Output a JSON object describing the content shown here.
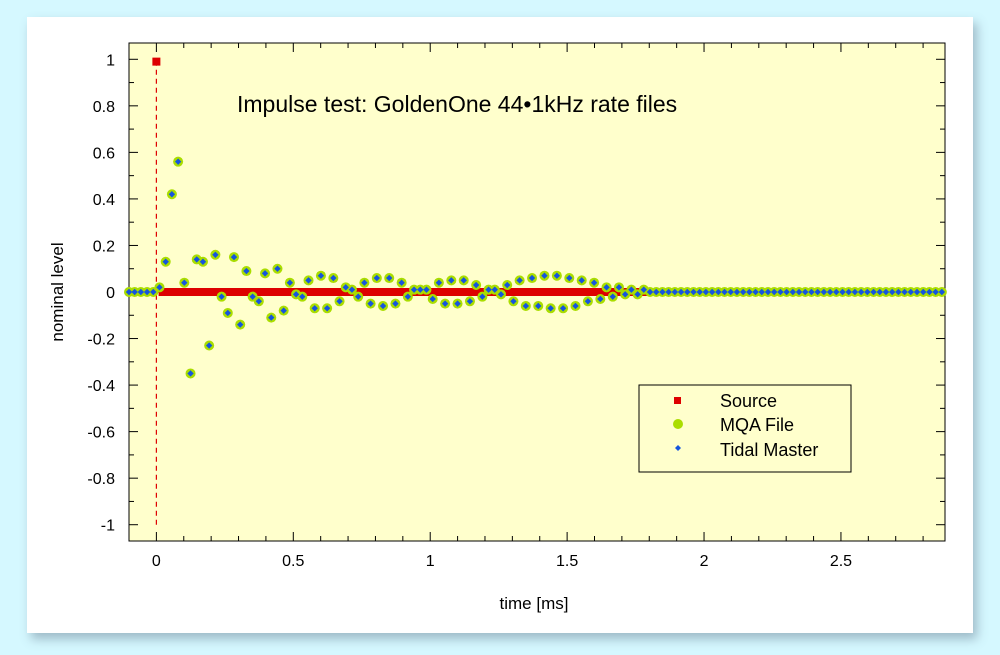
{
  "chart_data": {
    "type": "scatter",
    "title": "Impulse test: GoldenOne 44•1kHz rate files",
    "xlabel": "time [ms]",
    "ylabel": "nominal level",
    "xlim": [
      -0.1,
      2.88
    ],
    "ylim": [
      -1.07,
      1.07
    ],
    "x_ticks": [
      0,
      0.5,
      1,
      1.5,
      2,
      2.5
    ],
    "x_tick_labels": [
      "0",
      "0.5",
      "1",
      "1.5",
      "2",
      "2.5"
    ],
    "y_ticks": [
      1,
      0.8,
      0.6,
      0.4,
      0.2,
      0,
      -0.2,
      -0.4,
      -0.6,
      -0.8,
      -1
    ],
    "y_tick_labels": [
      "1",
      "0.8",
      "0.6",
      "0.4",
      "0.2",
      "0",
      "-0.2",
      "-0.4",
      "-0.6",
      "-0.8",
      "-1"
    ],
    "plot_background": "#ffffcc",
    "grid": false,
    "legend_position": "bottom-right",
    "series": [
      {
        "name": "Source",
        "marker": "square",
        "color": "#dd0000",
        "x": [
          0,
          0.0227,
          0.0454,
          0.068,
          0.0907,
          0.1134,
          0.1361,
          0.1587,
          0.1814,
          0.2041,
          0.2268,
          0.2494,
          0.2721,
          0.2948,
          0.3175,
          0.3401,
          0.3628,
          0.3855,
          0.4082,
          0.4308,
          0.4535,
          0.4762,
          0.4989,
          0.5215,
          0.5442,
          0.5669,
          0.5896,
          0.6122,
          0.6349,
          0.6576,
          0.6803,
          0.7029,
          0.7256,
          0.7483,
          0.771,
          0.7937,
          0.8163,
          0.839,
          0.8617,
          0.8844,
          0.907,
          0.9297,
          0.9524,
          0.9751,
          0.9977,
          1.0204,
          1.0431,
          1.0658,
          1.0884,
          1.1111,
          1.1338,
          1.1565,
          1.1791,
          1.2018,
          1.2245,
          1.2472,
          1.2698,
          1.2925,
          1.3152,
          1.3379,
          1.3605,
          1.3832,
          1.4059,
          1.4286,
          1.4512,
          1.4739,
          1.4966,
          1.5193,
          1.542,
          1.5646,
          1.5873,
          1.61,
          1.6327,
          1.6553,
          1.678,
          1.7007,
          1.7234,
          1.746,
          1.7687,
          1.7914
        ],
        "y": [
          0.99,
          0,
          0,
          0,
          0,
          0,
          0,
          0,
          0,
          0,
          0,
          0,
          0,
          0,
          0,
          0,
          0,
          0,
          0,
          0,
          0,
          0,
          0,
          0,
          0,
          0,
          0,
          0,
          0,
          0,
          0,
          0,
          0,
          0,
          0,
          0,
          0,
          0,
          0,
          0,
          0,
          0,
          0,
          0,
          0,
          0,
          0,
          0,
          0,
          0,
          0,
          0,
          0,
          0,
          0,
          0,
          0,
          0,
          0,
          0,
          0,
          0,
          0,
          0,
          0,
          0,
          0,
          0,
          0,
          0,
          0,
          0,
          0,
          0,
          0,
          0,
          0,
          0,
          0,
          0
        ]
      },
      {
        "name": "MQA File",
        "marker": "circle",
        "color": "#aadd00",
        "x": [
          -0.1,
          -0.0794,
          -0.0567,
          -0.034,
          -0.0113,
          0.0113,
          0.034,
          0.0567,
          0.0794,
          0.102,
          0.1247,
          0.1474,
          0.1701,
          0.1927,
          0.2154,
          0.2381,
          0.2608,
          0.2834,
          0.3061,
          0.3288,
          0.3515,
          0.3741,
          0.3968,
          0.4195,
          0.4422,
          0.4649,
          0.4875,
          0.5102,
          0.5329,
          0.5556,
          0.5782,
          0.6009,
          0.6236,
          0.6463,
          0.6689,
          0.6916,
          0.7143,
          0.737,
          0.7596,
          0.7823,
          0.805,
          0.8277,
          0.8503,
          0.873,
          0.8957,
          0.9184,
          0.941,
          0.9637,
          0.9864,
          1.0091,
          1.0317,
          1.0544,
          1.0771,
          1.0998,
          1.1224,
          1.1451,
          1.1678,
          1.1905,
          1.2132,
          1.2358,
          1.2585,
          1.2812,
          1.3039,
          1.3265,
          1.3492,
          1.3719,
          1.3946,
          1.4172,
          1.4399,
          1.4626,
          1.4853,
          1.5079,
          1.5306,
          1.5533,
          1.576,
          1.5986,
          1.6213,
          1.644,
          1.6667,
          1.6893,
          1.712,
          1.7347,
          1.7574,
          1.78,
          1.8027,
          1.8254,
          1.8481,
          1.8707,
          1.8934,
          1.9161,
          1.9388,
          1.9615,
          1.9841,
          2.0068,
          2.0295,
          2.0522,
          2.0748,
          2.0975,
          2.1202,
          2.1429,
          2.1655,
          2.1882,
          2.2109,
          2.2336,
          2.2562,
          2.2789,
          2.3016,
          2.3243,
          2.3469,
          2.3696,
          2.3923,
          2.415,
          2.4376,
          2.4603,
          2.483,
          2.5057,
          2.5283,
          2.551,
          2.5737,
          2.5964,
          2.619,
          2.6417,
          2.6644,
          2.6871,
          2.7098,
          2.7324,
          2.7551,
          2.7778,
          2.8005,
          2.8231,
          2.8458,
          2.8685
        ],
        "y": [
          0,
          0,
          0,
          0,
          0,
          0.02,
          0.13,
          0.42,
          0.56,
          0.04,
          -0.35,
          0.14,
          0.13,
          -0.23,
          0.16,
          -0.02,
          -0.09,
          0.15,
          -0.14,
          0.09,
          -0.02,
          -0.04,
          0.08,
          -0.11,
          0.1,
          -0.08,
          0.04,
          -0.01,
          -0.02,
          0.05,
          -0.07,
          0.07,
          -0.07,
          0.06,
          -0.04,
          0.02,
          0.01,
          -0.02,
          0.04,
          -0.05,
          0.06,
          -0.06,
          0.06,
          -0.05,
          0.04,
          -0.02,
          0.01,
          0.01,
          0.01,
          -0.03,
          0.04,
          -0.05,
          0.05,
          -0.05,
          0.05,
          -0.04,
          0.03,
          -0.02,
          0.01,
          0.01,
          -0.01,
          0.03,
          -0.04,
          0.05,
          -0.06,
          0.06,
          -0.06,
          0.07,
          -0.07,
          0.07,
          -0.07,
          0.06,
          -0.06,
          0.05,
          -0.04,
          0.04,
          -0.03,
          0.02,
          -0.02,
          0.02,
          -0.01,
          0.01,
          -0.01,
          0.01,
          0,
          0,
          0,
          0,
          0,
          0,
          0,
          0,
          0,
          0,
          0,
          0,
          0,
          0,
          0,
          0,
          0,
          0,
          0,
          0,
          0,
          0,
          0,
          0,
          0,
          0,
          0,
          0,
          0,
          0,
          0,
          0,
          0,
          0,
          0,
          0,
          0,
          0,
          0,
          0,
          0,
          0,
          0,
          0,
          0,
          0,
          0,
          0
        ]
      },
      {
        "name": "Tidal Master",
        "marker": "diamond",
        "color": "#1555dd",
        "x": [
          -0.1,
          -0.0794,
          -0.0567,
          -0.034,
          -0.0113,
          0.0113,
          0.034,
          0.0567,
          0.0794,
          0.102,
          0.1247,
          0.1474,
          0.1701,
          0.1927,
          0.2154,
          0.2381,
          0.2608,
          0.2834,
          0.3061,
          0.3288,
          0.3515,
          0.3741,
          0.3968,
          0.4195,
          0.4422,
          0.4649,
          0.4875,
          0.5102,
          0.5329,
          0.5556,
          0.5782,
          0.6009,
          0.6236,
          0.6463,
          0.6689,
          0.6916,
          0.7143,
          0.737,
          0.7596,
          0.7823,
          0.805,
          0.8277,
          0.8503,
          0.873,
          0.8957,
          0.9184,
          0.941,
          0.9637,
          0.9864,
          1.0091,
          1.0317,
          1.0544,
          1.0771,
          1.0998,
          1.1224,
          1.1451,
          1.1678,
          1.1905,
          1.2132,
          1.2358,
          1.2585,
          1.2812,
          1.3039,
          1.3265,
          1.3492,
          1.3719,
          1.3946,
          1.4172,
          1.4399,
          1.4626,
          1.4853,
          1.5079,
          1.5306,
          1.5533,
          1.576,
          1.5986,
          1.6213,
          1.644,
          1.6667,
          1.6893,
          1.712,
          1.7347,
          1.7574,
          1.78,
          1.8027,
          1.8254,
          1.8481,
          1.8707,
          1.8934,
          1.9161,
          1.9388,
          1.9615,
          1.9841,
          2.0068,
          2.0295,
          2.0522,
          2.0748,
          2.0975,
          2.1202,
          2.1429,
          2.1655,
          2.1882,
          2.2109,
          2.2336,
          2.2562,
          2.2789,
          2.3016,
          2.3243,
          2.3469,
          2.3696,
          2.3923,
          2.415,
          2.4376,
          2.4603,
          2.483,
          2.5057,
          2.5283,
          2.551,
          2.5737,
          2.5964,
          2.619,
          2.6417,
          2.6644,
          2.6871,
          2.7098,
          2.7324,
          2.7551,
          2.7778,
          2.8005,
          2.8231,
          2.8458,
          2.8685
        ],
        "y": [
          0,
          0,
          0,
          0,
          0,
          0.02,
          0.13,
          0.42,
          0.56,
          0.04,
          -0.35,
          0.14,
          0.13,
          -0.23,
          0.16,
          -0.02,
          -0.09,
          0.15,
          -0.14,
          0.09,
          -0.02,
          -0.04,
          0.08,
          -0.11,
          0.1,
          -0.08,
          0.04,
          -0.01,
          -0.02,
          0.05,
          -0.07,
          0.07,
          -0.07,
          0.06,
          -0.04,
          0.02,
          0.01,
          -0.02,
          0.04,
          -0.05,
          0.06,
          -0.06,
          0.06,
          -0.05,
          0.04,
          -0.02,
          0.01,
          0.01,
          0.01,
          -0.03,
          0.04,
          -0.05,
          0.05,
          -0.05,
          0.05,
          -0.04,
          0.03,
          -0.02,
          0.01,
          0.01,
          -0.01,
          0.03,
          -0.04,
          0.05,
          -0.06,
          0.06,
          -0.06,
          0.07,
          -0.07,
          0.07,
          -0.07,
          0.06,
          -0.06,
          0.05,
          -0.04,
          0.04,
          -0.03,
          0.02,
          -0.02,
          0.02,
          -0.01,
          0.01,
          -0.01,
          0.01,
          0,
          0,
          0,
          0,
          0,
          0,
          0,
          0,
          0,
          0,
          0,
          0,
          0,
          0,
          0,
          0,
          0,
          0,
          0,
          0,
          0,
          0,
          0,
          0,
          0,
          0,
          0,
          0,
          0,
          0,
          0,
          0,
          0,
          0,
          0,
          0,
          0,
          0,
          0,
          0,
          0,
          0,
          0,
          0,
          0,
          0,
          0,
          0
        ]
      }
    ],
    "annotations": [
      {
        "type": "vertical-dashed-line",
        "x": 0,
        "from_y": -1.0,
        "to_y": 0.99,
        "color": "#dd0000"
      }
    ]
  }
}
